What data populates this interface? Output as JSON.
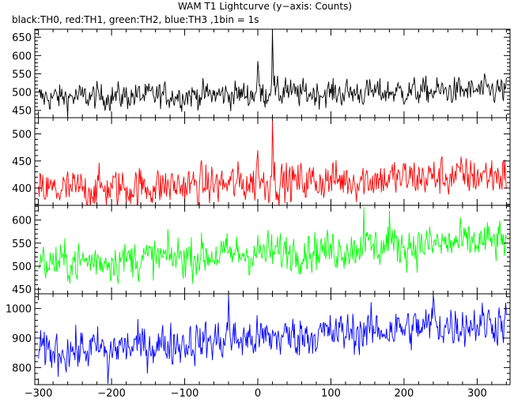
{
  "chart_data": {
    "type": "line",
    "title": "WAM T1 Lightcurve (y−axis: Counts)",
    "subtitle": "black:TH0, red:TH1, green:TH2, blue:TH3 ,1bin = 1s",
    "x_ticks": [
      -300,
      -200,
      -100,
      0,
      100,
      200,
      300
    ],
    "xlim": [
      -305,
      345
    ],
    "x_start": -300,
    "x_end": 340,
    "bin_seconds": 1,
    "grid": false,
    "legend": "subtitle text",
    "panels": [
      {
        "name": "TH0",
        "color": "#000000",
        "ylim": [
          430,
          672
        ],
        "y_ticks": [
          450,
          500,
          550,
          600,
          650
        ],
        "baseline_start": 485,
        "baseline_end": 505,
        "noise_amplitude": 22,
        "events": [
          {
            "x": 0,
            "y": 585
          },
          {
            "x": 20,
            "y": 670
          },
          {
            "x": 38,
            "y": 540
          }
        ]
      },
      {
        "name": "TH1",
        "color": "#ff0000",
        "ylim": [
          368,
          530
        ],
        "y_ticks": [
          400,
          450,
          500
        ],
        "baseline_start": 395,
        "baseline_end": 425,
        "noise_amplitude": 22,
        "events": [
          {
            "x": 20,
            "y": 525
          },
          {
            "x": 0,
            "y": 470
          }
        ]
      },
      {
        "name": "TH2",
        "color": "#00ff00",
        "ylim": [
          440,
          632
        ],
        "y_ticks": [
          450,
          500,
          550,
          600
        ],
        "baseline_start": 505,
        "baseline_end": 555,
        "noise_amplitude": 26,
        "events": [
          {
            "x": 145,
            "y": 628
          },
          {
            "x": 180,
            "y": 620
          }
        ]
      },
      {
        "name": "TH3",
        "color": "#0000ff",
        "ylim": [
          742,
          1050
        ],
        "y_ticks": [
          800,
          900,
          1000
        ],
        "baseline_start": 850,
        "baseline_end": 955,
        "noise_amplitude": 42,
        "events": [
          {
            "x": -40,
            "y": 1045
          },
          {
            "x": 240,
            "y": 1045
          },
          {
            "x": -205,
            "y": 745
          }
        ]
      }
    ]
  }
}
